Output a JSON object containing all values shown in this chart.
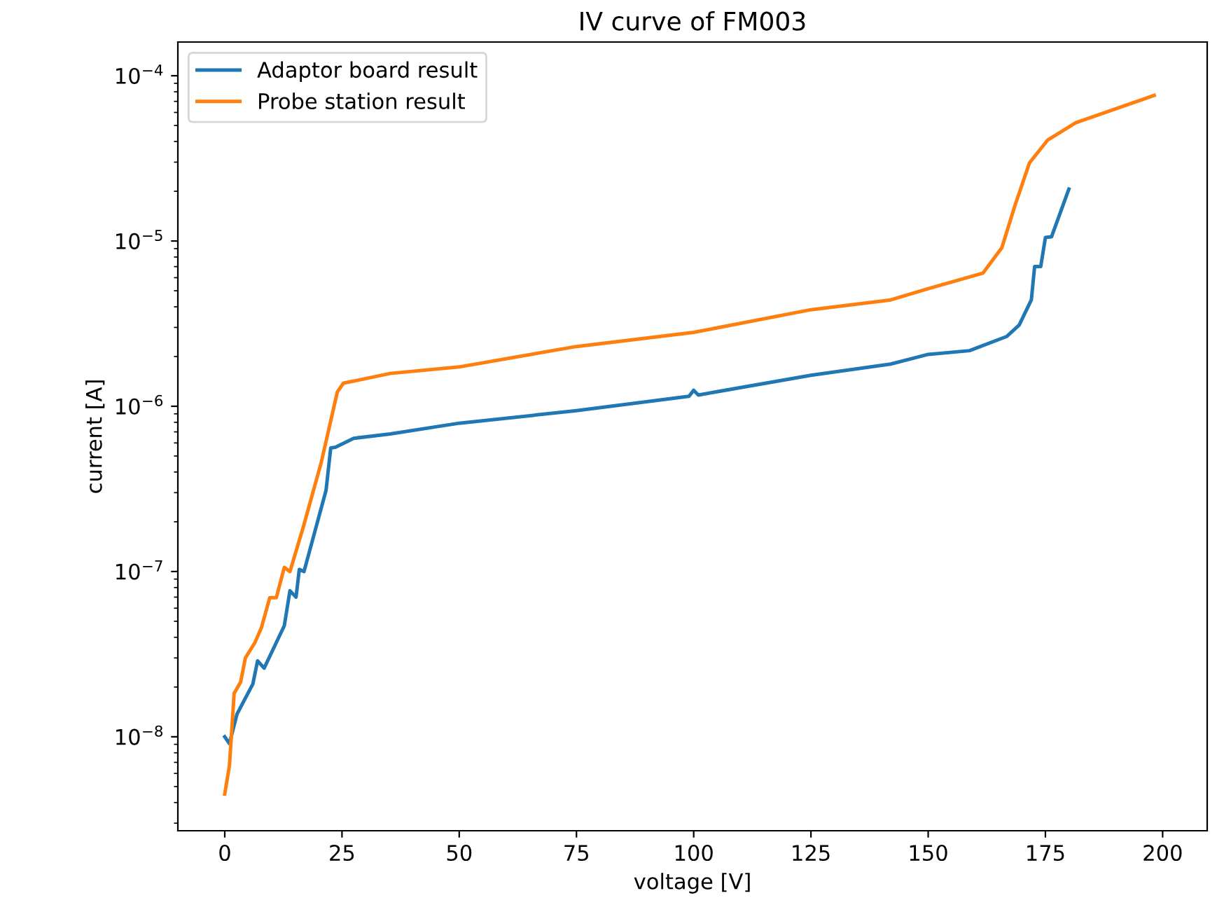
{
  "chart_data": {
    "type": "line",
    "title": "IV curve of FM003",
    "xlabel": "voltage [V]",
    "ylabel": "current [A]",
    "log": "y",
    "grid": false,
    "legend": "top left",
    "xlim": [
      -10,
      209.5
    ],
    "xticks": [
      0,
      25,
      50,
      75,
      100,
      125,
      150,
      175,
      200
    ],
    "ylim": [
      2.7e-09,
      0.00016
    ],
    "yticks": [
      {
        "value": 1e-08,
        "label": "10$^{−8}$"
      },
      {
        "value": 1e-07,
        "label": "10$^{−7}$"
      },
      {
        "value": 1e-06,
        "label": "10$^{−6}$"
      },
      {
        "value": 1e-05,
        "label": "10$^{−5}$"
      },
      {
        "value": 0.0001,
        "label": "10$^{−4}$"
      }
    ],
    "series": [
      {
        "name": "Adaptor board result",
        "color": "#1f77b4",
        "x": [
          0,
          1,
          2.6,
          6,
          7,
          8.4,
          12.7,
          13.9,
          15.2,
          15.9,
          16.9,
          21.6,
          22.6,
          23.6,
          27.5,
          35.3,
          50,
          75,
          99,
          100,
          101,
          125,
          142,
          150,
          158.8,
          166.7,
          169.4,
          172,
          172.7,
          174,
          175,
          176.3,
          180
        ],
        "values": [
          1e-08,
          9.1e-09,
          1.37e-08,
          2.09e-08,
          2.88e-08,
          2.6e-08,
          4.7e-08,
          7.65e-08,
          7e-08,
          1.03e-07,
          1e-07,
          3.1e-07,
          5.6e-07,
          5.65e-07,
          6.4e-07,
          6.8e-07,
          7.9e-07,
          9.4e-07,
          1.15e-06,
          1.25e-06,
          1.17e-06,
          1.54e-06,
          1.8e-06,
          2.06e-06,
          2.17e-06,
          2.64e-06,
          3.1e-06,
          4.4e-06,
          7e-06,
          7e-06,
          1.05e-05,
          1.06e-05,
          2.06e-05
        ]
      },
      {
        "name": "Probe station result",
        "color": "#ff7f0e",
        "x": [
          0,
          1,
          2,
          3.4,
          4.4,
          6.4,
          7.8,
          9.6,
          11,
          12.7,
          13.9,
          16.7,
          20.6,
          24,
          25.3,
          27.5,
          35.3,
          50,
          75,
          100,
          125,
          142,
          150,
          161.7,
          165.7,
          168.6,
          171.6,
          175.5,
          181.5,
          198.2
        ],
        "values": [
          4.5e-09,
          6.7e-09,
          1.83e-08,
          2.15e-08,
          3e-08,
          3.7e-08,
          4.55e-08,
          6.95e-08,
          6.95e-08,
          1.06e-07,
          1e-07,
          1.84e-07,
          4.6e-07,
          1.22e-06,
          1.38e-06,
          1.42e-06,
          1.58e-06,
          1.73e-06,
          2.3e-06,
          2.8e-06,
          3.84e-06,
          4.4e-06,
          5.15e-06,
          6.4e-06,
          9.1e-06,
          1.67e-05,
          2.97e-05,
          4.09e-05,
          5.2e-05,
          7.6e-05
        ]
      }
    ]
  }
}
